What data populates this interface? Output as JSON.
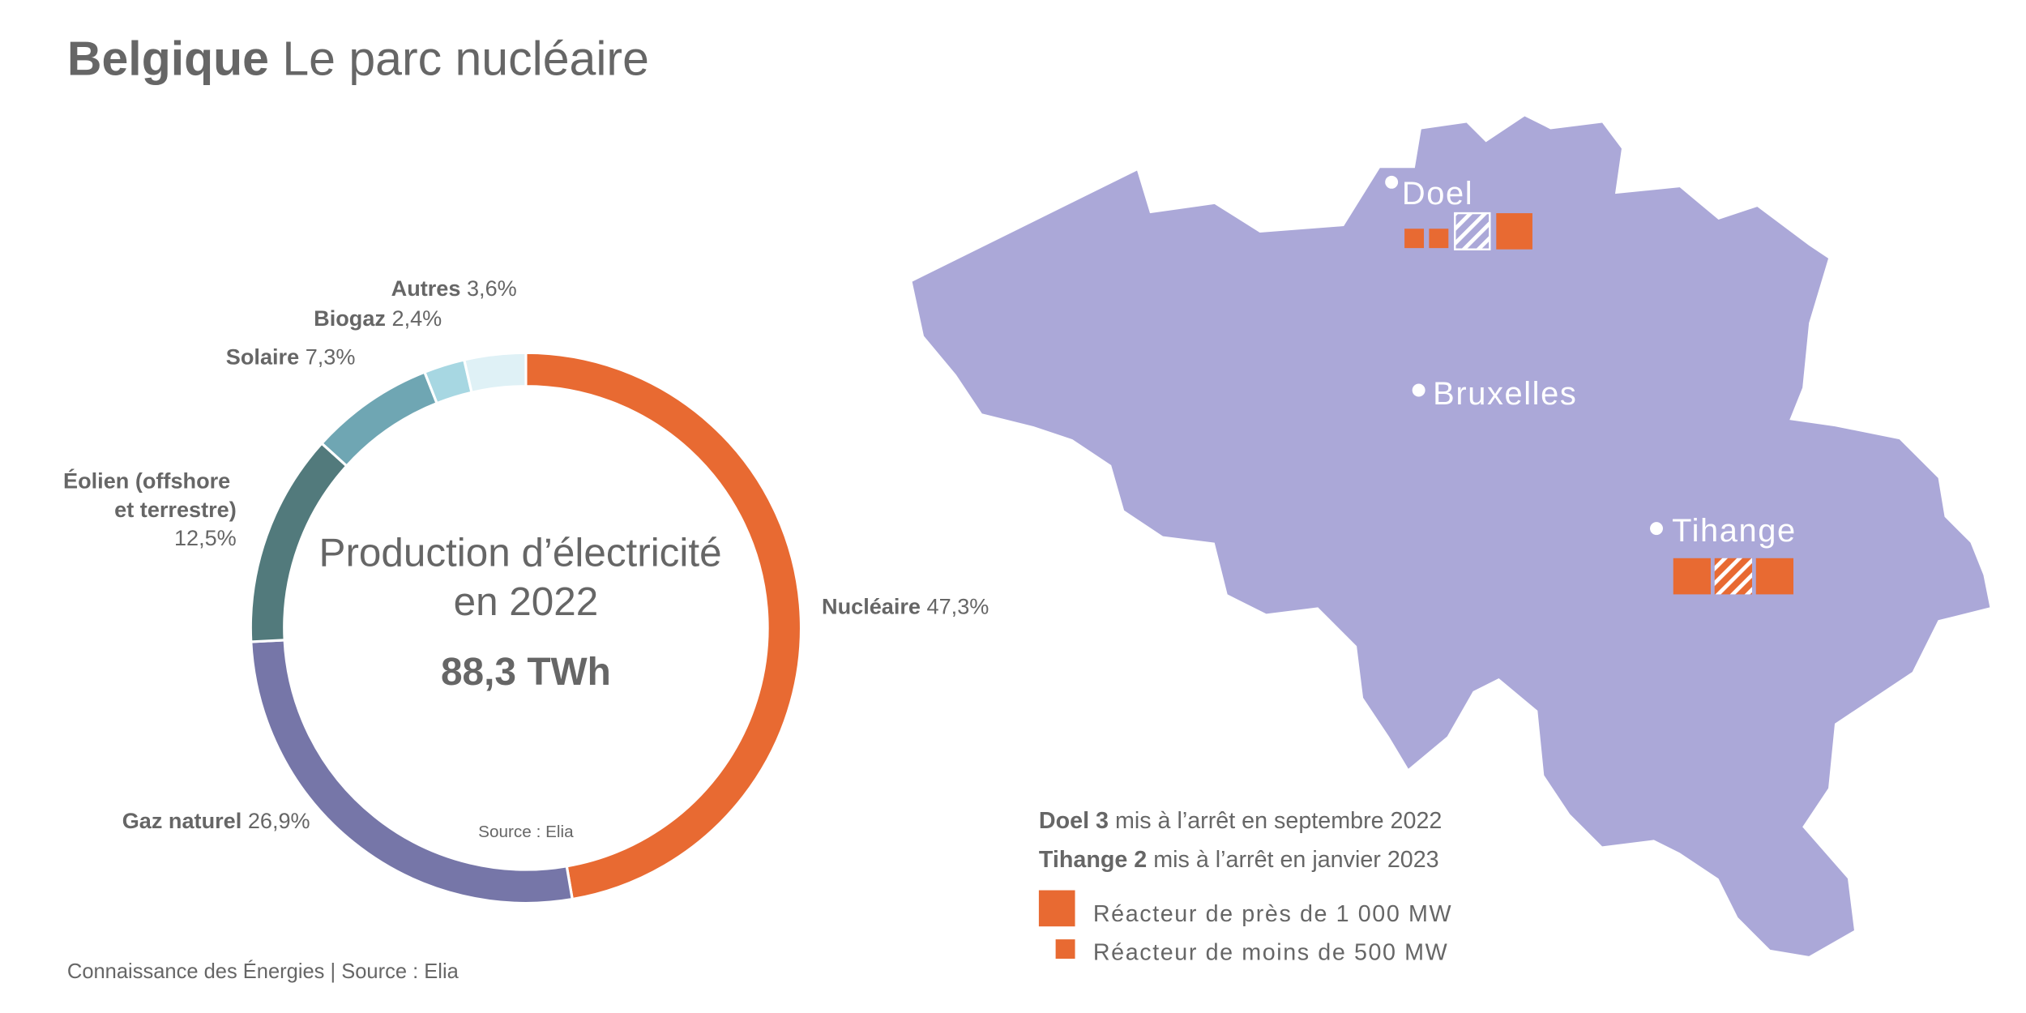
{
  "header": {
    "title_bold": "Belgique",
    "title": "Le parc nucléaire"
  },
  "chart_data": {
    "type": "donut",
    "center_title": "Production d’électricité en 2022",
    "center_total": "88,3 TWh",
    "source": "Source : Elia",
    "categories": [
      "Nucléaire",
      "Gaz naturel",
      "Éolien (offshore et terrestre)",
      "Solaire",
      "Biogaz",
      "Autres"
    ],
    "values": [
      47.3,
      26.9,
      12.5,
      7.3,
      2.4,
      3.6
    ],
    "value_labels": [
      "47,3%",
      "26,9%",
      "12,5%",
      "7,3%",
      "2,4%",
      "3,6%"
    ],
    "colors": [
      "#e86a32",
      "#7676a8",
      "#527a7c",
      "#6fa6b3",
      "#a7d7e2",
      "#dff1f6"
    ]
  },
  "map": {
    "cities": [
      "Doel",
      "Bruxelles",
      "Tihange"
    ],
    "notes": [
      {
        "bold": "Doel 3",
        "text": "mis à l’arrêt en septembre 2022"
      },
      {
        "bold": "Tihange 2",
        "text": "mis à l’arrêt en janvier 2023"
      }
    ],
    "legend": [
      "Réacteur de près de 1 000 MW",
      "Réacteur de moins de 500 MW"
    ]
  },
  "footer": "Connaissance des Énergies | Source : Elia"
}
